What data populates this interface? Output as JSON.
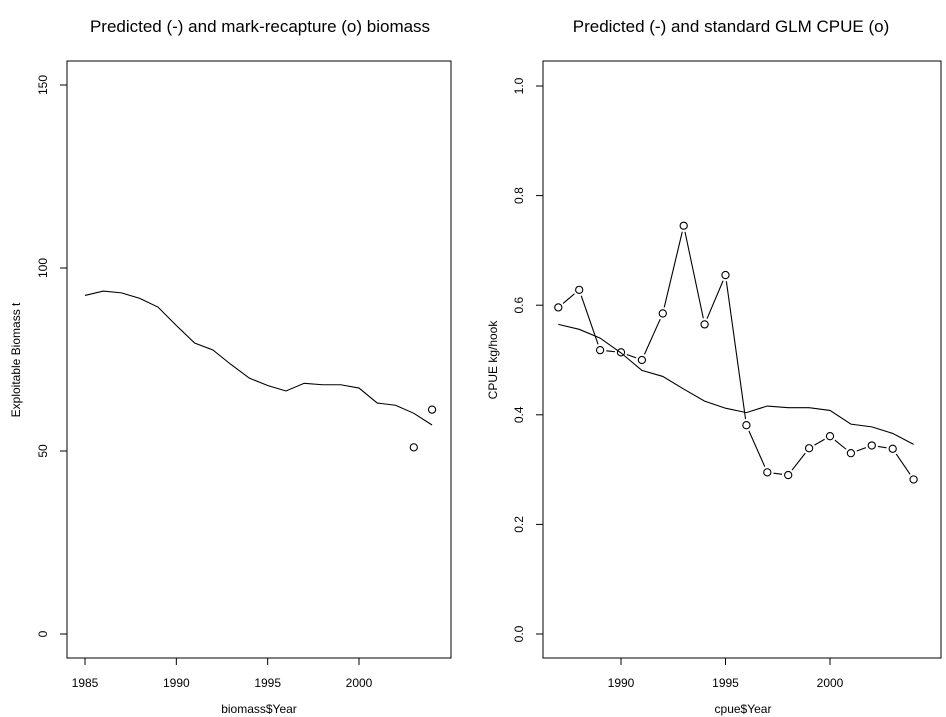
{
  "chart_data": [
    {
      "type": "line",
      "title": "Predicted (-) and mark-recapture (o) biomass",
      "xlabel": "biomass$Year",
      "ylabel": "Exploitable Biomass t",
      "xlim": [
        1985,
        2004
      ],
      "ylim": [
        0,
        150
      ],
      "x_ticks": [
        "1985",
        "1990",
        "1995",
        "2000"
      ],
      "y_ticks": [
        "0",
        "50",
        "100",
        "150"
      ],
      "series": [
        {
          "style": "line",
          "x": [
            1985,
            1986,
            1987,
            1988,
            1989,
            1990,
            1991,
            1992,
            1993,
            1994,
            1995,
            1996,
            1997,
            1998,
            1999,
            2000,
            2001,
            2002,
            2003,
            2004
          ],
          "y": [
            92.5,
            93.7,
            93.2,
            91.7,
            89.3,
            84.3,
            79.5,
            77.6,
            73.6,
            69.9,
            67.9,
            66.4,
            68.5,
            68.1,
            68.1,
            67.2,
            63.1,
            62.5,
            60.3,
            57.1
          ]
        },
        {
          "style": "points",
          "x": [
            2003,
            2004
          ],
          "y": [
            51.0,
            61.3
          ]
        }
      ]
    },
    {
      "type": "line",
      "title": "Predicted (-) and standard GLM CPUE (o)",
      "xlabel": "cpue$Year",
      "ylabel": "CPUE kg/hook",
      "xlim": [
        1987,
        2004
      ],
      "ylim": [
        0,
        1
      ],
      "x_ticks": [
        "1990",
        "1995",
        "2000"
      ],
      "y_ticks": [
        "0.0",
        "0.2",
        "0.4",
        "0.6",
        "0.8",
        "1.0"
      ],
      "series": [
        {
          "style": "line",
          "x": [
            1987,
            1988,
            1989,
            1990,
            1991,
            1992,
            1993,
            1994,
            1995,
            1996,
            1997,
            1998,
            1999,
            2000,
            2001,
            2002,
            2003,
            2004
          ],
          "y": [
            0.565,
            0.556,
            0.54,
            0.513,
            0.481,
            0.47,
            0.447,
            0.425,
            0.412,
            0.404,
            0.416,
            0.413,
            0.413,
            0.408,
            0.383,
            0.378,
            0.366,
            0.346
          ]
        },
        {
          "style": "points-connected",
          "x": [
            1987,
            1988,
            1989,
            1990,
            1991,
            1992,
            1993,
            1994,
            1995,
            1996,
            1997,
            1998,
            1999,
            2000,
            2001,
            2002,
            2003,
            2004
          ],
          "y": [
            0.596,
            0.628,
            0.518,
            0.514,
            0.5,
            0.585,
            0.745,
            0.565,
            0.655,
            0.381,
            0.295,
            0.29,
            0.339,
            0.361,
            0.33,
            0.344,
            0.338,
            0.282
          ]
        }
      ]
    }
  ]
}
